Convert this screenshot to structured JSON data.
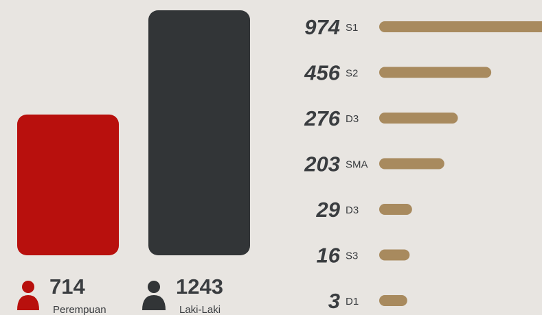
{
  "chart_data": [
    {
      "type": "bar",
      "categories": [
        "Perempuan",
        "Laki-Laki"
      ],
      "values": [
        714,
        1243
      ],
      "colors": [
        "#b8100d",
        "#323537"
      ]
    },
    {
      "type": "hbar",
      "categories": [
        "S1",
        "S2",
        "D3",
        "SMA",
        "D3",
        "S3",
        "D1"
      ],
      "values": [
        974,
        456,
        276,
        203,
        29,
        16,
        3
      ],
      "color": "#a88a5e"
    }
  ]
}
